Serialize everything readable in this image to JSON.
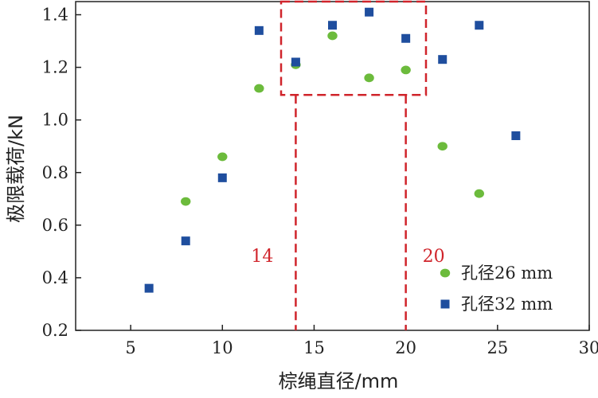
{
  "chart_data": {
    "type": "scatter",
    "title": "",
    "xlabel": "棕绳直径/mm",
    "ylabel": "极限载荷/kN",
    "xlim": [
      2,
      30
    ],
    "ylim": [
      0.2,
      1.45
    ],
    "xticks": [
      "5",
      "10",
      "15",
      "20",
      "25",
      "30"
    ],
    "yticks": [
      "0.2",
      "0.4",
      "0.6",
      "0.8",
      "1.0",
      "1.2",
      "1.4"
    ],
    "grid": false,
    "legend_position": "bottom-right",
    "series": [
      {
        "name": "孔径26 mm",
        "marker": "circle",
        "color": "#6cbb3c",
        "x": [
          8,
          10,
          12,
          14,
          16,
          18,
          20,
          22,
          24
        ],
        "y": [
          0.69,
          0.86,
          1.12,
          1.21,
          1.32,
          1.16,
          1.19,
          0.9,
          0.72
        ]
      },
      {
        "name": "孔径32 mm",
        "marker": "square",
        "color": "#1f4e9e",
        "x": [
          6,
          8,
          10,
          12,
          14,
          16,
          18,
          20,
          22,
          24,
          26
        ],
        "y": [
          0.36,
          0.54,
          0.78,
          1.34,
          1.22,
          1.36,
          1.41,
          1.31,
          1.23,
          1.36,
          0.94
        ]
      }
    ],
    "annotations": [
      {
        "text": "14",
        "x": 14
      },
      {
        "text": "20",
        "x": 20
      }
    ],
    "highlight_box": {
      "x": [
        13.2,
        21.1
      ],
      "y": [
        1.095,
        1.45
      ]
    },
    "guide_lines_x": [
      14,
      20
    ],
    "annotation_color": "#d0242b"
  }
}
